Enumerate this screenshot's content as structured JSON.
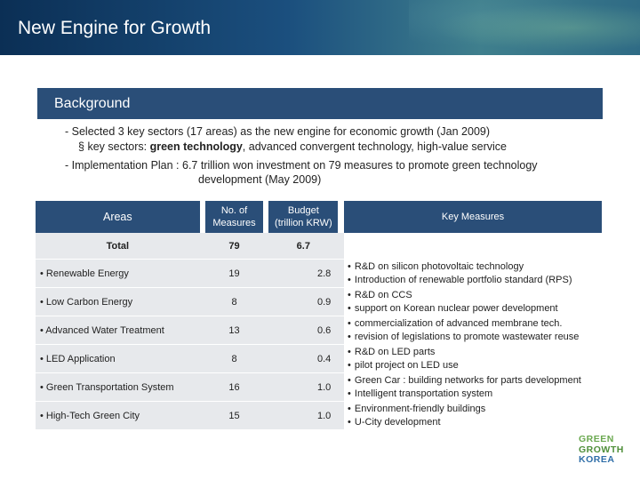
{
  "title": "New Engine for Growth",
  "section": {
    "heading": "Background"
  },
  "background": {
    "line1": "- Selected 3 key sectors (17 areas) as the new engine for economic growth (Jan 2009)",
    "line2_bullet": "§",
    "line2_prefix": "key sectors: ",
    "line2_bold": "green technology",
    "line2_suffix": ", advanced convergent technology, high-value service",
    "line3": "- Implementation Plan : 6.7 trillion won investment on 79 measures to promote green technology",
    "line4": "development (May 2009)"
  },
  "table": {
    "headers": {
      "areas": "Areas",
      "measures_l1": "No. of",
      "measures_l2": "Measures",
      "budget_l1": "Budget",
      "budget_l2": "(trillion KRW)",
      "key": "Key Measures"
    },
    "total": {
      "label": "Total",
      "measures": "79",
      "budget": "6.7"
    },
    "rows": [
      {
        "area": "• Renewable Energy",
        "measures": "19",
        "budget": "2.8",
        "key": [
          "R&D on silicon photovoltaic technology",
          "Introduction of renewable portfolio standard (RPS)"
        ]
      },
      {
        "area": "• Low Carbon Energy",
        "measures": "8",
        "budget": "0.9",
        "key": [
          "R&D on CCS",
          "support on Korean nuclear power development"
        ]
      },
      {
        "area": "• Advanced Water Treatment",
        "measures": "13",
        "budget": "0.6",
        "key": [
          "commercialization of advanced membrane tech.",
          "revision of legislations to promote wastewater reuse"
        ]
      },
      {
        "area": "• LED Application",
        "measures": "8",
        "budget": "0.4",
        "key": [
          "R&D on LED parts",
          "pilot project on LED use"
        ]
      },
      {
        "area": "• Green Transportation System",
        "measures": "16",
        "budget": "1.0",
        "key": [
          "Green Car : building networks for parts development",
          "Intelligent transportation system"
        ]
      },
      {
        "area": "• High-Tech Green City",
        "measures": "15",
        "budget": "1.0",
        "key": [
          "Environment-friendly buildings",
          "U-City development"
        ]
      }
    ],
    "bullet": "•"
  },
  "logo": {
    "line1": "GREEN",
    "line2": "GROWTH",
    "line3": "KOREA"
  },
  "colors": {
    "header_bar": "#2a4e78",
    "row_fill": "#e7e9ec",
    "logo_green": "#6aa84f",
    "logo_blue": "#2f6ea8"
  }
}
